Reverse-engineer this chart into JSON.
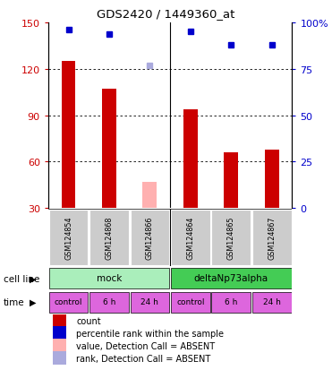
{
  "title": "GDS2420 / 1449360_at",
  "samples": [
    "GSM124854",
    "GSM124868",
    "GSM124866",
    "GSM124864",
    "GSM124865",
    "GSM124867"
  ],
  "count_values": [
    125,
    107,
    null,
    94,
    66,
    68
  ],
  "count_absent_values": [
    null,
    null,
    47,
    null,
    null,
    null
  ],
  "rank_values": [
    96,
    94,
    null,
    95,
    88,
    88
  ],
  "rank_absent_values": [
    null,
    null,
    77,
    null,
    null,
    null
  ],
  "ylim_left": [
    30,
    150
  ],
  "ylim_right": [
    0,
    100
  ],
  "yticks_left": [
    30,
    60,
    90,
    120,
    150
  ],
  "yticks_right": [
    0,
    25,
    50,
    75,
    100
  ],
  "count_color": "#cc0000",
  "count_absent_color": "#ffb0b0",
  "rank_color": "#0000cc",
  "rank_absent_color": "#aaaadd",
  "plot_bg": "#ffffff",
  "sample_bg": "#cccccc",
  "cell_line_groups": [
    {
      "label": "mock",
      "start": 0,
      "end": 3,
      "color": "#aaeebb"
    },
    {
      "label": "deltaNp73alpha",
      "start": 3,
      "end": 6,
      "color": "#44cc55"
    }
  ],
  "time_labels": [
    "control",
    "6 h",
    "24 h",
    "control",
    "6 h",
    "24 h"
  ],
  "time_color": "#dd66dd",
  "cell_line_row_label": "cell line",
  "time_row_label": "time",
  "legend_items": [
    {
      "color": "#cc0000",
      "label": "count"
    },
    {
      "color": "#0000cc",
      "label": "percentile rank within the sample"
    },
    {
      "color": "#ffb0b0",
      "label": "value, Detection Call = ABSENT"
    },
    {
      "color": "#aaaadd",
      "label": "rank, Detection Call = ABSENT"
    }
  ],
  "left_label_color": "#cc0000",
  "right_label_color": "#0000cc"
}
